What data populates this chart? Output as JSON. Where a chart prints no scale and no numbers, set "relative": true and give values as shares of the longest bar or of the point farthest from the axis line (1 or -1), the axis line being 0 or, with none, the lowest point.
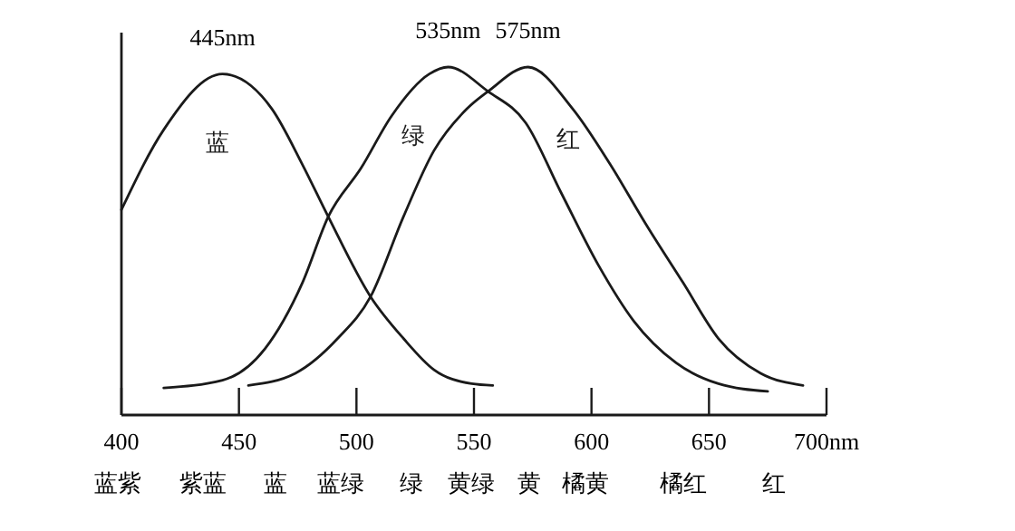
{
  "chart_data": {
    "type": "line",
    "relative": true,
    "line_style": "solid",
    "xlim": [
      400,
      700
    ],
    "xticks": [
      400,
      450,
      500,
      550,
      600,
      650,
      {
        "value": 700,
        "label": "700nm"
      }
    ],
    "series": [
      {
        "name": "蓝",
        "color": "#1a1a1a",
        "x": [
          400,
          418,
          443,
          464,
          477,
          488,
          506,
          520,
          533,
          549,
          558
        ],
        "values": [
          0.59,
          0.82,
          0.98,
          0.88,
          0.72,
          0.57,
          0.34,
          0.22,
          0.13,
          0.09,
          0.085
        ]
      },
      {
        "name": "绿",
        "color": "#1a1a1a",
        "x": [
          418,
          443,
          461,
          477,
          488,
          502,
          515,
          531,
          539,
          556,
          572,
          587,
          603,
          618,
          636,
          654,
          675
        ],
        "values": [
          0.078,
          0.1,
          0.19,
          0.38,
          0.57,
          0.71,
          0.86,
          0.98,
          1.0,
          0.93,
          0.84,
          0.64,
          0.43,
          0.27,
          0.15,
          0.09,
          0.068
        ]
      },
      {
        "name": "红",
        "color": "#1a1a1a",
        "x": [
          454,
          474,
          492,
          506,
          520,
          533,
          547,
          556,
          573,
          592,
          608,
          623,
          639,
          654,
          672,
          690
        ],
        "values": [
          0.085,
          0.12,
          0.22,
          0.34,
          0.57,
          0.76,
          0.88,
          0.93,
          1.0,
          0.88,
          0.72,
          0.55,
          0.38,
          0.22,
          0.12,
          0.085
        ]
      }
    ],
    "annotations": [
      {
        "text": "445nm",
        "x": 443,
        "y": 0.98
      },
      {
        "text": "535nm",
        "x": 539,
        "y": 1.0
      },
      {
        "text": "575nm",
        "x": 573,
        "y": 1.0
      },
      "蓝紫",
      "紫蓝",
      "蓝",
      "蓝绿",
      "绿",
      "黄绿",
      "黄",
      "橘黄",
      "橘红",
      "红"
    ]
  }
}
